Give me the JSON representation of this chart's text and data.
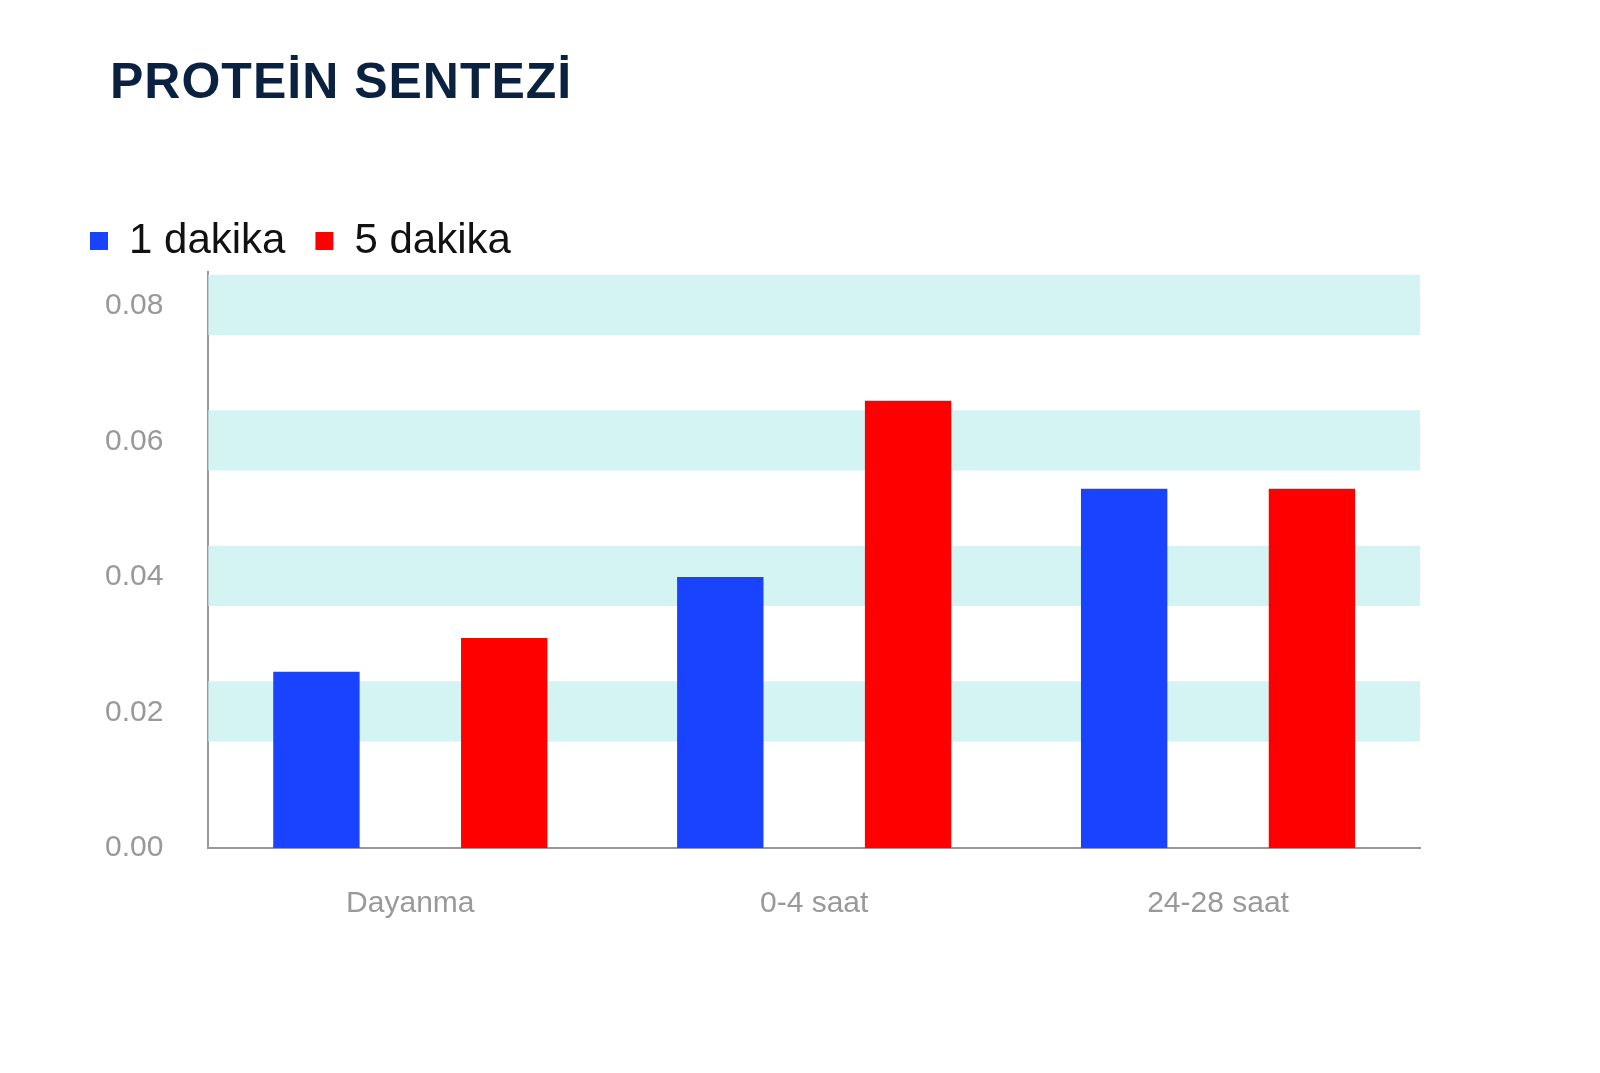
{
  "chart_data": {
    "type": "bar",
    "title": "PROTEİN SENTEZİ",
    "categories": [
      "Dayanma",
      "0-4 saat",
      "24-28 saat"
    ],
    "series": [
      {
        "name": "1 dakika",
        "color": "#1a43ff",
        "values": [
          0.026,
          0.04,
          0.053
        ]
      },
      {
        "name": "5 dakika",
        "color": "#ff0000",
        "values": [
          0.031,
          0.066,
          0.053
        ]
      }
    ],
    "ylim": [
      0,
      0.085
    ],
    "yticks": [
      {
        "value": 0,
        "label": "0.00"
      },
      {
        "value": 0.02,
        "label": "0.02"
      },
      {
        "value": 0.04,
        "label": "0.04"
      },
      {
        "value": 0.06,
        "label": "0.06"
      },
      {
        "value": 0.08,
        "label": "0.08"
      }
    ],
    "bands": [
      {
        "axis": "y",
        "from": 0.0157,
        "to": 0.0246,
        "color": "#d4f4f4"
      },
      {
        "axis": "y",
        "from": 0.0357,
        "to": 0.0446,
        "color": "#d4f4f4"
      },
      {
        "axis": "y",
        "from": 0.0557,
        "to": 0.0646,
        "color": "#d4f4f4"
      },
      {
        "axis": "y",
        "from": 0.0757,
        "to": 0.0846,
        "color": "#d4f4f4"
      }
    ],
    "grid": false,
    "legend": "top left"
  }
}
